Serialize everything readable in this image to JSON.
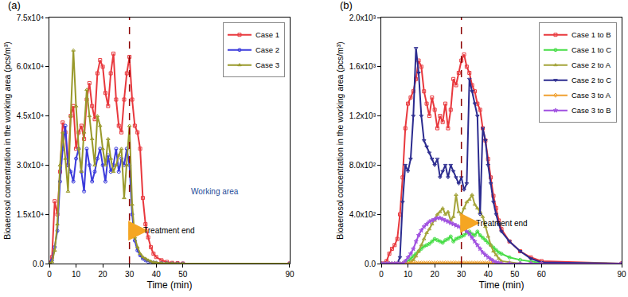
{
  "chart_data": [
    {
      "type": "line",
      "title": "(a)",
      "x_label": "Time (min)",
      "y_label": "Bioaerosol concentration in the working area (pcs/m³)",
      "x": [
        0,
        1,
        2,
        3,
        4,
        5,
        6,
        7,
        8,
        9,
        10,
        11,
        12,
        13,
        14,
        15,
        16,
        17,
        18,
        19,
        20,
        21,
        22,
        23,
        24,
        25,
        26,
        27,
        28,
        29,
        30,
        31,
        32,
        33,
        34,
        35,
        36,
        37,
        38,
        39,
        40,
        42,
        44,
        46,
        48,
        50,
        90
      ],
      "series": [
        {
          "name": "Case 1",
          "color": "#e8383d",
          "marker": "square-open",
          "values": [
            0,
            2000,
            19000,
            15000,
            28000,
            43000,
            40000,
            30000,
            45000,
            48000,
            35000,
            40000,
            42000,
            38000,
            50000,
            55000,
            48000,
            44000,
            58000,
            62000,
            60000,
            52000,
            48000,
            58000,
            64000,
            50000,
            42000,
            40000,
            50000,
            58000,
            63000,
            50000,
            42000,
            40000,
            35000,
            20000,
            12000,
            8000,
            5000,
            3000,
            2000,
            1000,
            500,
            200,
            100,
            0,
            0
          ]
        },
        {
          "name": "Case 2",
          "color": "#3a3adb",
          "marker": "circle-open",
          "values": [
            0,
            1000,
            5000,
            10000,
            25000,
            35000,
            42000,
            30000,
            28000,
            25000,
            32000,
            35000,
            28000,
            22000,
            35000,
            30000,
            25000,
            28000,
            32000,
            35000,
            30000,
            25000,
            33000,
            28000,
            30000,
            35000,
            28000,
            32000,
            30000,
            35000,
            30000,
            15000,
            7000,
            4000,
            2500,
            1500,
            1000,
            600,
            400,
            300,
            200,
            100,
            50,
            0,
            0,
            0,
            0
          ]
        },
        {
          "name": "Case 3",
          "color": "#99992a",
          "marker": "triangle-up-open",
          "values": [
            0,
            500,
            4000,
            12000,
            30000,
            40000,
            32000,
            22000,
            45000,
            65000,
            48000,
            35000,
            28000,
            40000,
            53000,
            45000,
            38000,
            30000,
            45000,
            42000,
            35000,
            30000,
            38000,
            32000,
            28000,
            30000,
            33000,
            35000,
            20000,
            30000,
            42000,
            18000,
            8000,
            5000,
            3000,
            2000,
            1500,
            1000,
            700,
            400,
            300,
            150,
            100,
            50,
            0,
            0,
            0
          ]
        }
      ],
      "xlim": [
        0,
        90
      ],
      "xticks": [
        0,
        10,
        20,
        30,
        40,
        50,
        90
      ],
      "ylim": [
        0,
        75000
      ],
      "yticks": [
        {
          "value": 0,
          "label": "0.0"
        },
        {
          "value": 15000,
          "label": "1.5x10⁴"
        },
        {
          "value": 30000,
          "label": "3.0x10⁴"
        },
        {
          "value": 45000,
          "label": "4.5x10⁴"
        },
        {
          "value": 60000,
          "label": "6.0x10⁴"
        },
        {
          "value": 75000,
          "label": "7.5x10⁴"
        }
      ],
      "legend": "upper right",
      "treatment_end": 30,
      "annotations": [
        {
          "text": "Treatment end",
          "x": 45,
          "y": 10000,
          "arrow_to": 37
        },
        {
          "text": "Working area",
          "x": 62,
          "y": 22000
        }
      ]
    },
    {
      "type": "line",
      "title": "(b)",
      "x_label": "Time (min)",
      "y_label": "Bioaerosol concentration in the working area (pcs/m³)",
      "x": [
        0,
        1,
        2,
        3,
        4,
        5,
        6,
        7,
        8,
        9,
        10,
        11,
        12,
        13,
        14,
        15,
        16,
        17,
        18,
        19,
        20,
        21,
        22,
        23,
        24,
        25,
        26,
        27,
        28,
        29,
        30,
        31,
        32,
        33,
        34,
        35,
        36,
        37,
        38,
        39,
        40,
        41,
        42,
        43,
        44,
        45,
        48,
        52,
        56,
        60,
        90
      ],
      "series": [
        {
          "name": "Case 1 to B",
          "color": "#e8383d",
          "marker": "square-open",
          "values": [
            0,
            0,
            20,
            80,
            120,
            150,
            200,
            400,
            700,
            1100,
            1300,
            1350,
            1400,
            1500,
            1650,
            1600,
            1400,
            1300,
            1200,
            1350,
            1250,
            1100,
            1200,
            1150,
            1300,
            1100,
            1250,
            1500,
            1450,
            1550,
            1650,
            1700,
            1600,
            1550,
            1450,
            1400,
            1300,
            1250,
            1100,
            1000,
            850,
            700,
            550,
            450,
            350,
            280,
            180,
            100,
            50,
            20,
            0
          ]
        },
        {
          "name": "Case 1 to C",
          "color": "#44dd44",
          "marker": "circle-open",
          "values": [
            0,
            0,
            0,
            0,
            0,
            0,
            0,
            0,
            0,
            10,
            20,
            40,
            60,
            80,
            100,
            120,
            140,
            150,
            160,
            180,
            200,
            190,
            180,
            170,
            190,
            200,
            220,
            180,
            200,
            210,
            220,
            230,
            250,
            260,
            240,
            230,
            260,
            230,
            210,
            190,
            170,
            150,
            130,
            110,
            90,
            80,
            50,
            30,
            15,
            5,
            0
          ]
        },
        {
          "name": "Case 2 to A",
          "color": "#a4a43a",
          "marker": "triangle-up-open",
          "values": [
            0,
            0,
            0,
            0,
            0,
            0,
            0,
            0,
            0,
            0,
            0,
            10,
            30,
            60,
            100,
            150,
            200,
            250,
            280,
            320,
            350,
            400,
            420,
            450,
            400,
            420,
            350,
            380,
            560,
            420,
            400,
            450,
            500,
            520,
            560,
            480,
            450,
            420,
            380,
            300,
            220,
            150,
            100,
            70,
            40,
            20,
            10,
            0,
            0,
            0,
            0
          ]
        },
        {
          "name": "Case 2 to C",
          "color": "#2b2b8f",
          "marker": "triangle-down-open",
          "values": [
            0,
            0,
            0,
            0,
            0,
            0,
            0,
            50,
            500,
            800,
            750,
            850,
            1200,
            1750,
            1550,
            1200,
            1000,
            950,
            900,
            850,
            800,
            850,
            700,
            750,
            800,
            700,
            800,
            750,
            700,
            650,
            700,
            600,
            650,
            1500,
            1400,
            1300,
            1200,
            400,
            1100,
            1000,
            800,
            650,
            500,
            400,
            320,
            260,
            180,
            100,
            40,
            10,
            0
          ]
        },
        {
          "name": "Case 3 to A",
          "color": "#f0a030",
          "marker": "diamond-open",
          "values": [
            0,
            0,
            0,
            0,
            0,
            0,
            0,
            0,
            0,
            0,
            0,
            5,
            5,
            5,
            5,
            5,
            5,
            5,
            5,
            5,
            5,
            5,
            5,
            5,
            5,
            5,
            5,
            5,
            5,
            5,
            5,
            5,
            5,
            5,
            5,
            5,
            5,
            5,
            5,
            5,
            5,
            5,
            5,
            0,
            0,
            0,
            0,
            0,
            0,
            0,
            0
          ]
        },
        {
          "name": "Case 3 to B",
          "color": "#a050e0",
          "marker": "star-open",
          "values": [
            0,
            0,
            0,
            0,
            0,
            0,
            0,
            0,
            0,
            20,
            50,
            80,
            120,
            180,
            230,
            270,
            300,
            320,
            340,
            350,
            360,
            370,
            370,
            360,
            350,
            340,
            330,
            320,
            310,
            300,
            290,
            280,
            260,
            240,
            210,
            180,
            150,
            120,
            90,
            70,
            50,
            35,
            20,
            10,
            5,
            0,
            0,
            0,
            0,
            0,
            0
          ]
        }
      ],
      "xlim": [
        0,
        90
      ],
      "xticks": [
        0,
        10,
        20,
        30,
        40,
        50,
        60,
        90
      ],
      "ylim": [
        0,
        2000
      ],
      "yticks": [
        {
          "value": 0,
          "label": "0.0"
        },
        {
          "value": 400,
          "label": "4.0x10²"
        },
        {
          "value": 800,
          "label": "8.0x10²"
        },
        {
          "value": 1200,
          "label": "1.2x10³"
        },
        {
          "value": 1600,
          "label": "1.6x10³"
        },
        {
          "value": 2000,
          "label": "2.0x10³"
        }
      ],
      "legend": "upper right",
      "treatment_end": 30,
      "annotations": [
        {
          "text": "Treatment end",
          "x": 45,
          "y": 330,
          "arrow_to": 37
        }
      ]
    }
  ]
}
